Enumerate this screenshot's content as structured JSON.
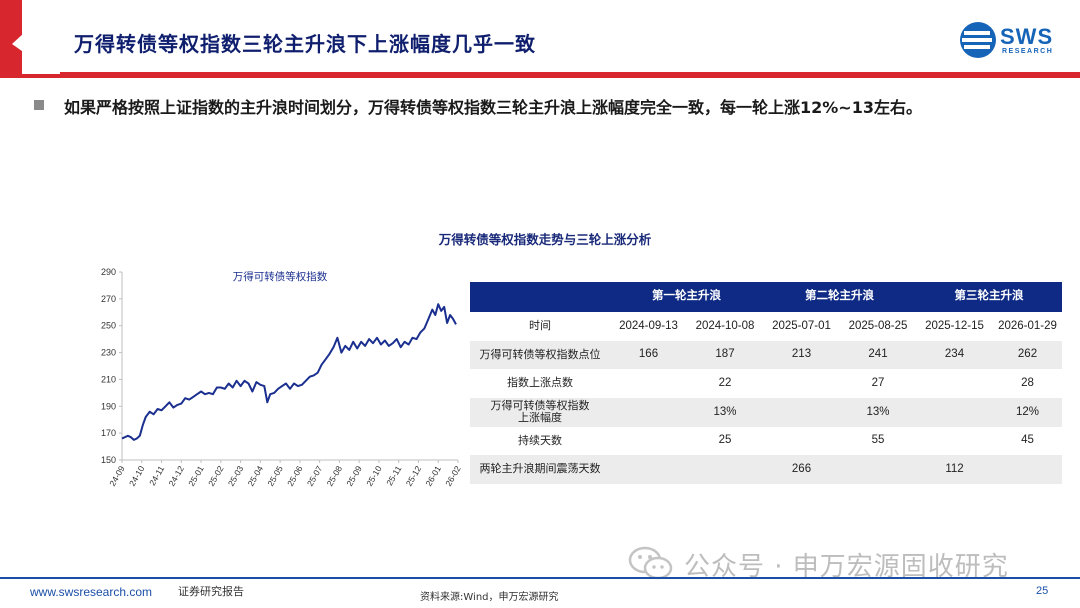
{
  "header": {
    "title": "万得转债等权指数三轮主升浪下上涨幅度几乎一致",
    "logo_text": "SWS",
    "logo_subtext": "RESEARCH"
  },
  "bullet": "如果严格按照上证指数的主升浪时间划分，万得转债等权指数三轮主升浪上涨幅度完全一致，每一轮上涨12%~13左右。",
  "section_title": "万得转债等权指数走势与三轮上涨分析",
  "chart_data": {
    "type": "line",
    "title": "万得可转债等权指数",
    "xlabel": "",
    "ylabel": "",
    "ylim": [
      150,
      290
    ],
    "yticks": [
      150,
      170,
      190,
      210,
      230,
      250,
      270,
      290
    ],
    "xticks": [
      "24-09",
      "24-10",
      "24-11",
      "24-12",
      "25-01",
      "25-02",
      "25-03",
      "25-04",
      "25-05",
      "25-06",
      "25-07",
      "25-08",
      "25-09",
      "25-10",
      "25-11",
      "25-12",
      "26-01",
      "26-02"
    ],
    "xlim": [
      0,
      17
    ],
    "colors": {
      "line": "#1a2f8f",
      "axis": "#bfbfbf"
    },
    "series": [
      {
        "x": [
          0,
          0.3,
          0.45,
          0.6,
          0.75,
          0.9,
          1.05,
          1.2,
          1.4,
          1.6,
          1.8,
          2.0,
          2.2,
          2.4,
          2.6,
          2.8,
          3.0,
          3.2,
          3.4,
          3.6,
          3.8,
          4.0,
          4.2,
          4.4,
          4.6,
          4.8,
          5.0,
          5.2,
          5.4,
          5.6,
          5.8,
          6.0,
          6.2,
          6.4,
          6.6,
          6.8,
          7.0,
          7.2,
          7.35,
          7.5,
          7.7,
          7.9,
          8.1,
          8.3,
          8.5,
          8.7,
          8.9,
          9.1,
          9.3,
          9.5,
          9.7,
          9.9,
          10.1,
          10.3,
          10.5,
          10.7,
          10.9,
          11.1,
          11.3,
          11.5,
          11.7,
          11.9,
          12.1,
          12.3,
          12.5,
          12.7,
          12.9,
          13.1,
          13.3,
          13.5,
          13.7,
          13.9,
          14.1,
          14.3,
          14.5,
          14.7,
          14.9,
          15.1,
          15.3,
          15.5,
          15.7,
          15.85,
          16.0,
          16.15,
          16.3,
          16.45,
          16.6,
          16.75,
          16.9
        ],
        "values": [
          166,
          168,
          167,
          165,
          166,
          168,
          176,
          182,
          186,
          184,
          188,
          187,
          190,
          193,
          189,
          191,
          192,
          196,
          195,
          197,
          199,
          201,
          199,
          200,
          199,
          204,
          204,
          203,
          207,
          204,
          209,
          205,
          209,
          207,
          201,
          208,
          206,
          205,
          193,
          199,
          200,
          203,
          205,
          207,
          203,
          207,
          205,
          206,
          209,
          212,
          213,
          215,
          221,
          225,
          229,
          234,
          241,
          230,
          235,
          232,
          238,
          233,
          238,
          235,
          240,
          237,
          241,
          236,
          239,
          235,
          237,
          240,
          234,
          238,
          236,
          241,
          240,
          245,
          248,
          255,
          262,
          258,
          266,
          261,
          264,
          252,
          258,
          255,
          251
        ]
      }
    ]
  },
  "table": {
    "groups": [
      "第一轮主升浪",
      "第二轮主升浪",
      "第三轮主升浪"
    ],
    "rows": [
      {
        "label": "时间",
        "cells": [
          "2024-09-13",
          "2024-10-08",
          "2025-07-01",
          "2025-08-25",
          "2025-12-15",
          "2026-01-29"
        ]
      },
      {
        "label": "万得可转债等权指数点位",
        "cells": [
          "166",
          "187",
          "213",
          "241",
          "234",
          "262"
        ]
      },
      {
        "label": "指数上涨点数",
        "cells": [
          "",
          "22",
          "",
          "27",
          "",
          "28"
        ]
      },
      {
        "label": "万得可转债等权指数上涨幅度",
        "cells": [
          "",
          "13%",
          "",
          "13%",
          "",
          "12%"
        ]
      },
      {
        "label": "持续天数",
        "cells": [
          "",
          "25",
          "",
          "55",
          "",
          "45"
        ]
      },
      {
        "label": "两轮主升浪期间震荡天数",
        "cells": [
          "",
          "",
          "266",
          "",
          "112",
          ""
        ]
      }
    ]
  },
  "footer": {
    "url": "www.swsresearch.com",
    "report": "证券研究报告",
    "source": "资料来源:Wind，申万宏源研究",
    "page": "25"
  },
  "watermark": "公众号 · 申万宏源固收研究",
  "colors": {
    "brand_blue": "#1664b8",
    "navy": "#0e2a84",
    "accent_red": "#d7262d"
  }
}
